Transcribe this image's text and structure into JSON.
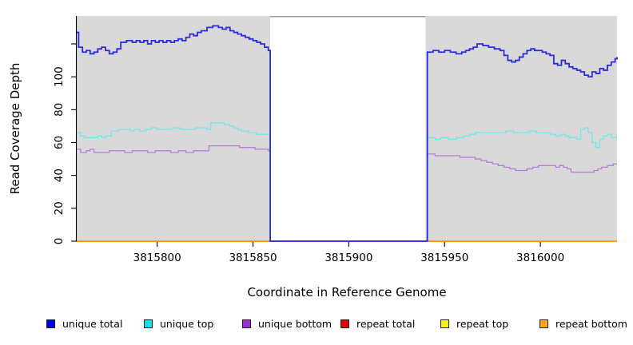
{
  "chart_data": {
    "type": "line",
    "subtype": "step-coverage-plot",
    "xlabel": "Coordinate in Reference Genome",
    "ylabel": "Read Coverage Depth",
    "xlim": [
      3815758,
      3816040
    ],
    "ylim": [
      0,
      137
    ],
    "x_ticks": [
      3815800,
      3815850,
      3815900,
      3815950,
      3816000
    ],
    "y_ticks_labeled": [
      0,
      20,
      40,
      60,
      80,
      100
    ],
    "y_ticks_unlabeled": [
      120
    ],
    "grid": "off",
    "legend_position": "bottom",
    "panel_background": "#d9d9d9",
    "no_data_region": {
      "start": 3815859,
      "end": 3815940,
      "background": "#ffffff",
      "top_border": "#9a9a9a"
    },
    "axis_color": "#000000",
    "series": [
      {
        "name": "repeat total",
        "line_color": "#dd0000",
        "legend_color": "#e30000",
        "width": 1.5,
        "points": [
          [
            3815758,
            0
          ],
          [
            3816040,
            0
          ]
        ]
      },
      {
        "name": "repeat top",
        "line_color": "#eded00",
        "legend_color": "#f5f500",
        "width": 1.5,
        "points": [
          [
            3815758,
            0
          ],
          [
            3816040,
            0
          ]
        ]
      },
      {
        "name": "repeat bottom",
        "line_color": "#ff9d1e",
        "legend_color": "#ffa519",
        "width": 1.7,
        "points": [
          [
            3815758,
            0
          ],
          [
            3816040,
            0
          ]
        ]
      },
      {
        "name": "unique bottom",
        "line_color": "#b67fd8",
        "legend_color": "#9a30d0",
        "width": 1.3,
        "points": [
          [
            3815758,
            56
          ],
          [
            3815760,
            54
          ],
          [
            3815763,
            55
          ],
          [
            3815765,
            56
          ],
          [
            3815767,
            54
          ],
          [
            3815771,
            54
          ],
          [
            3815775,
            55
          ],
          [
            3815779,
            55
          ],
          [
            3815783,
            54
          ],
          [
            3815787,
            55
          ],
          [
            3815791,
            55
          ],
          [
            3815795,
            54
          ],
          [
            3815799,
            55
          ],
          [
            3815803,
            55
          ],
          [
            3815807,
            54
          ],
          [
            3815811,
            55
          ],
          [
            3815815,
            54
          ],
          [
            3815819,
            55
          ],
          [
            3815823,
            55
          ],
          [
            3815827,
            58
          ],
          [
            3815831,
            58
          ],
          [
            3815835,
            58
          ],
          [
            3815839,
            58
          ],
          [
            3815843,
            57
          ],
          [
            3815847,
            57
          ],
          [
            3815851,
            56
          ],
          [
            3815855,
            56
          ],
          [
            3815858,
            55
          ],
          [
            3815859,
            0
          ],
          [
            3815940,
            0
          ],
          [
            3815941,
            53
          ],
          [
            3815945,
            52
          ],
          [
            3815950,
            52
          ],
          [
            3815955,
            52
          ],
          [
            3815958,
            51
          ],
          [
            3815963,
            51
          ],
          [
            3815966,
            50
          ],
          [
            3815969,
            49
          ],
          [
            3815972,
            48
          ],
          [
            3815975,
            47
          ],
          [
            3815978,
            46
          ],
          [
            3815981,
            45
          ],
          [
            3815984,
            44
          ],
          [
            3815987,
            43
          ],
          [
            3815990,
            43
          ],
          [
            3815993,
            44
          ],
          [
            3815996,
            45
          ],
          [
            3815999,
            46
          ],
          [
            3816002,
            46
          ],
          [
            3816005,
            46
          ],
          [
            3816008,
            45
          ],
          [
            3816010,
            46
          ],
          [
            3816012,
            45
          ],
          [
            3816014,
            44
          ],
          [
            3816016,
            42
          ],
          [
            3816020,
            42
          ],
          [
            3816024,
            42
          ],
          [
            3816028,
            43
          ],
          [
            3816030,
            44
          ],
          [
            3816032,
            45
          ],
          [
            3816035,
            46
          ],
          [
            3816038,
            47
          ],
          [
            3816040,
            47
          ]
        ]
      },
      {
        "name": "unique top",
        "line_color": "#72e7e7",
        "legend_color": "#00e8e8",
        "width": 1.3,
        "points": [
          [
            3815758,
            66
          ],
          [
            3815760,
            64
          ],
          [
            3815762,
            63
          ],
          [
            3815766,
            63
          ],
          [
            3815769,
            64
          ],
          [
            3815771,
            63
          ],
          [
            3815773,
            64
          ],
          [
            3815776,
            67
          ],
          [
            3815780,
            68
          ],
          [
            3815784,
            68
          ],
          [
            3815786,
            67
          ],
          [
            3815788,
            68
          ],
          [
            3815791,
            67
          ],
          [
            3815794,
            68
          ],
          [
            3815797,
            69
          ],
          [
            3815800,
            68
          ],
          [
            3815804,
            68
          ],
          [
            3815808,
            69
          ],
          [
            3815812,
            68
          ],
          [
            3815816,
            68
          ],
          [
            3815820,
            69
          ],
          [
            3815824,
            69
          ],
          [
            3815826,
            68
          ],
          [
            3815828,
            72
          ],
          [
            3815832,
            72
          ],
          [
            3815835,
            71
          ],
          [
            3815838,
            70
          ],
          [
            3815840,
            69
          ],
          [
            3815842,
            68
          ],
          [
            3815844,
            67
          ],
          [
            3815848,
            66
          ],
          [
            3815852,
            65
          ],
          [
            3815856,
            65
          ],
          [
            3815859,
            0
          ],
          [
            3815940,
            0
          ],
          [
            3815941,
            63
          ],
          [
            3815945,
            62
          ],
          [
            3815948,
            63
          ],
          [
            3815952,
            62
          ],
          [
            3815956,
            63
          ],
          [
            3815960,
            64
          ],
          [
            3815963,
            65
          ],
          [
            3815966,
            66
          ],
          [
            3815970,
            66
          ],
          [
            3815974,
            66
          ],
          [
            3815978,
            66
          ],
          [
            3815982,
            67
          ],
          [
            3815986,
            66
          ],
          [
            3815990,
            66
          ],
          [
            3815994,
            67
          ],
          [
            3815998,
            66
          ],
          [
            3816002,
            66
          ],
          [
            3816005,
            65
          ],
          [
            3816008,
            64
          ],
          [
            3816011,
            65
          ],
          [
            3816013,
            64
          ],
          [
            3816015,
            63
          ],
          [
            3816017,
            63
          ],
          [
            3816019,
            62
          ],
          [
            3816021,
            68
          ],
          [
            3816023,
            69
          ],
          [
            3816025,
            66
          ],
          [
            3816027,
            60
          ],
          [
            3816029,
            57
          ],
          [
            3816031,
            62
          ],
          [
            3816033,
            64
          ],
          [
            3816035,
            65
          ],
          [
            3816037,
            63
          ],
          [
            3816040,
            63
          ]
        ]
      },
      {
        "name": "unique total",
        "line_color": "#2b2bdf",
        "legend_color": "#0000e0",
        "width": 1.8,
        "points": [
          [
            3815758,
            127
          ],
          [
            3815759,
            118
          ],
          [
            3815761,
            115
          ],
          [
            3815763,
            116
          ],
          [
            3815765,
            114
          ],
          [
            3815767,
            115
          ],
          [
            3815769,
            117
          ],
          [
            3815771,
            118
          ],
          [
            3815773,
            116
          ],
          [
            3815775,
            114
          ],
          [
            3815777,
            115
          ],
          [
            3815779,
            117
          ],
          [
            3815781,
            121
          ],
          [
            3815784,
            122
          ],
          [
            3815787,
            121
          ],
          [
            3815789,
            122
          ],
          [
            3815791,
            121
          ],
          [
            3815793,
            122
          ],
          [
            3815795,
            120
          ],
          [
            3815797,
            122
          ],
          [
            3815799,
            121
          ],
          [
            3815801,
            122
          ],
          [
            3815803,
            121
          ],
          [
            3815805,
            122
          ],
          [
            3815807,
            121
          ],
          [
            3815809,
            122
          ],
          [
            3815811,
            123
          ],
          [
            3815813,
            122
          ],
          [
            3815815,
            124
          ],
          [
            3815817,
            126
          ],
          [
            3815819,
            125
          ],
          [
            3815821,
            127
          ],
          [
            3815823,
            128
          ],
          [
            3815826,
            130
          ],
          [
            3815829,
            131
          ],
          [
            3815832,
            130
          ],
          [
            3815834,
            129
          ],
          [
            3815836,
            130
          ],
          [
            3815838,
            128
          ],
          [
            3815840,
            127
          ],
          [
            3815842,
            126
          ],
          [
            3815844,
            125
          ],
          [
            3815846,
            124
          ],
          [
            3815848,
            123
          ],
          [
            3815850,
            122
          ],
          [
            3815852,
            121
          ],
          [
            3815854,
            120
          ],
          [
            3815856,
            118
          ],
          [
            3815858,
            116
          ],
          [
            3815859,
            0
          ],
          [
            3815940,
            0
          ],
          [
            3815941,
            115
          ],
          [
            3815944,
            116
          ],
          [
            3815947,
            115
          ],
          [
            3815950,
            116
          ],
          [
            3815953,
            115
          ],
          [
            3815956,
            114
          ],
          [
            3815959,
            115
          ],
          [
            3815961,
            116
          ],
          [
            3815963,
            117
          ],
          [
            3815965,
            118
          ],
          [
            3815967,
            120
          ],
          [
            3815970,
            119
          ],
          [
            3815973,
            118
          ],
          [
            3815976,
            117
          ],
          [
            3815979,
            116
          ],
          [
            3815981,
            113
          ],
          [
            3815983,
            110
          ],
          [
            3815985,
            109
          ],
          [
            3815987,
            110
          ],
          [
            3815989,
            112
          ],
          [
            3815991,
            114
          ],
          [
            3815993,
            116
          ],
          [
            3815995,
            117
          ],
          [
            3815997,
            116
          ],
          [
            3815999,
            116
          ],
          [
            3816001,
            115
          ],
          [
            3816003,
            114
          ],
          [
            3816005,
            113
          ],
          [
            3816007,
            108
          ],
          [
            3816009,
            107
          ],
          [
            3816011,
            110
          ],
          [
            3816013,
            108
          ],
          [
            3816015,
            106
          ],
          [
            3816017,
            105
          ],
          [
            3816019,
            104
          ],
          [
            3816021,
            103
          ],
          [
            3816023,
            101
          ],
          [
            3816025,
            100
          ],
          [
            3816027,
            103
          ],
          [
            3816029,
            102
          ],
          [
            3816031,
            105
          ],
          [
            3816033,
            104
          ],
          [
            3816035,
            107
          ],
          [
            3816037,
            109
          ],
          [
            3816039,
            111
          ],
          [
            3816040,
            112
          ]
        ]
      }
    ],
    "legend": [
      {
        "label": "unique total",
        "color": "#0000e0"
      },
      {
        "label": "unique top",
        "color": "#00e8e8"
      },
      {
        "label": "unique bottom",
        "color": "#9a30d0"
      },
      {
        "label": "repeat total",
        "color": "#e30000"
      },
      {
        "label": "repeat top",
        "color": "#f5f500"
      },
      {
        "label": "repeat bottom",
        "color": "#ffa519"
      }
    ]
  }
}
